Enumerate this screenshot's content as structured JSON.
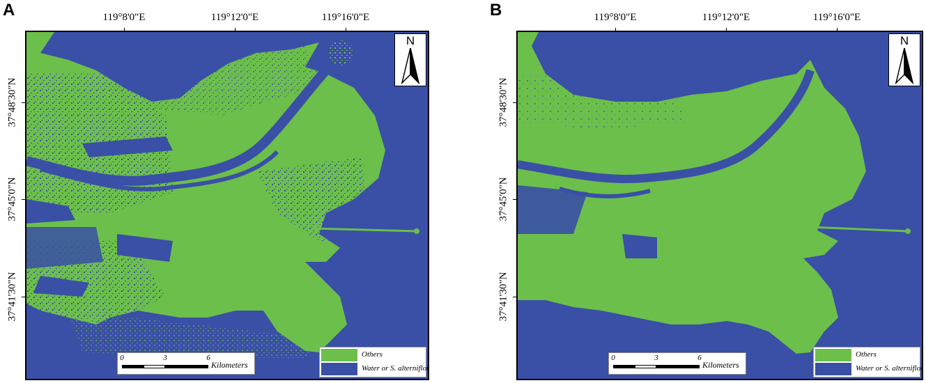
{
  "panels": [
    {
      "letter": "A",
      "lon_labels": [
        "119°8'0\"E",
        "119°12'0\"E",
        "119°16'0\"E"
      ],
      "lat_labels": [
        "37°48'30\"N",
        "37°45'0\"N",
        "37°41'30\"N"
      ],
      "north_label": "N",
      "legend": [
        {
          "label": "Others",
          "color": "#6cbf4a"
        },
        {
          "label": "Water or S. alterniflora",
          "color": "#3a4fa6"
        }
      ],
      "scale": {
        "ticks": [
          "0",
          "3",
          "6"
        ],
        "unit": "Kilometers"
      }
    },
    {
      "letter": "B",
      "lon_labels": [
        "119°8'0\"E",
        "119°12'0\"E",
        "119°16'0\"E"
      ],
      "lat_labels": [
        "37°48'30\"N",
        "37°45'0\"N",
        "37°41'30\"N"
      ],
      "north_label": "N",
      "legend": [
        {
          "label": "Others",
          "color": "#6cbf4a"
        },
        {
          "label": "Water or S. alterniflora",
          "color": "#3a4fa6"
        }
      ],
      "scale": {
        "ticks": [
          "0",
          "3",
          "6"
        ],
        "unit": "Kilometers"
      }
    }
  ]
}
